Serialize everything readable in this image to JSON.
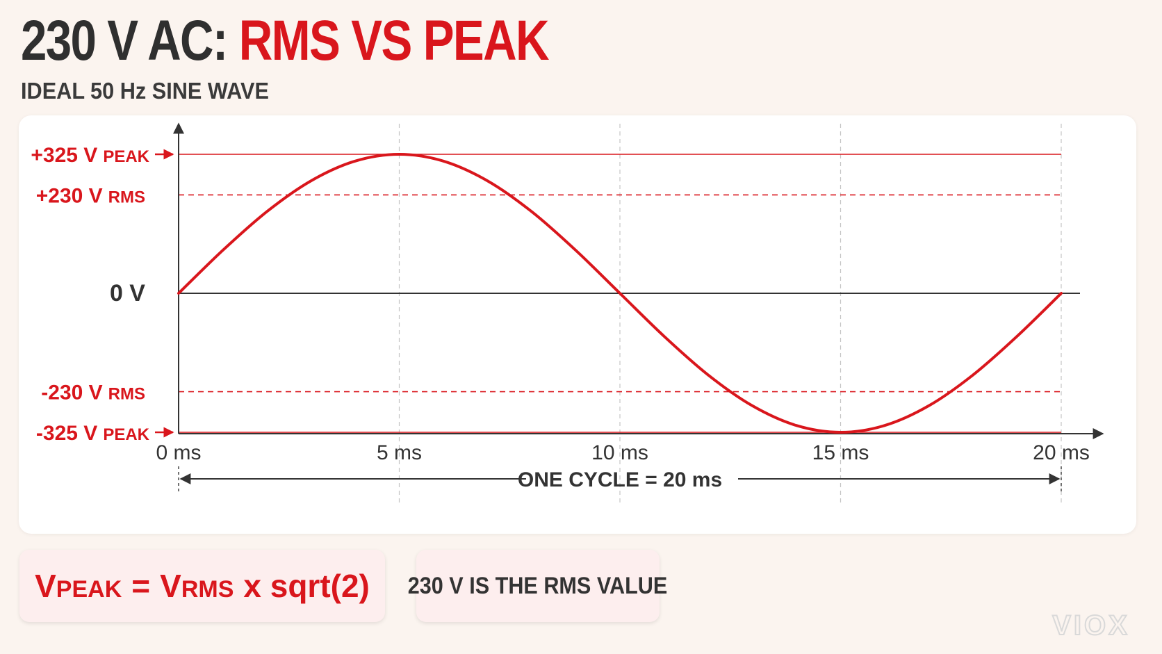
{
  "header": {
    "title_prefix": "230 V AC: ",
    "title_highlight": "RMS VS PEAK",
    "subtitle": "IDEAL 50 Hz SINE WAVE"
  },
  "colors": {
    "accent": "#d9161c",
    "dark": "#2f2f2f",
    "background": "#fbf4ef",
    "card": "#ffffff",
    "box": "#fdeeee"
  },
  "chart_data": {
    "type": "line",
    "title": "",
    "xlabel": "",
    "ylabel": "",
    "xlim": [
      0,
      20
    ],
    "ylim": [
      -325,
      325
    ],
    "series": [
      {
        "x": [
          0,
          1,
          2,
          3,
          4,
          5,
          6,
          7,
          8,
          9,
          10,
          11,
          12,
          13,
          14,
          15,
          16,
          17,
          18,
          19,
          20
        ],
        "y": [
          0,
          100.4,
          191.0,
          262.9,
          309.1,
          325,
          309.1,
          262.9,
          191.0,
          100.4,
          0,
          -100.4,
          -191.0,
          -262.9,
          -309.1,
          -325,
          -309.1,
          -262.9,
          -191.0,
          -100.4,
          0
        ]
      }
    ],
    "x_ticks": [
      {
        "value": 0,
        "label": "0 ms"
      },
      {
        "value": 5,
        "label": "5 ms"
      },
      {
        "value": 10,
        "label": "10 ms"
      },
      {
        "value": 15,
        "label": "15 ms"
      },
      {
        "value": 20,
        "label": "20 ms"
      }
    ],
    "reference_lines": [
      {
        "value": 325,
        "style": "solid",
        "color": "#d9161c",
        "label_main": "+325 V",
        "label_small": "PEAK",
        "arrow": true
      },
      {
        "value": 230,
        "style": "dashed",
        "color": "#d9161c",
        "label_main": "+230 V",
        "label_small": "RMS",
        "arrow": false
      },
      {
        "value": 0,
        "style": "solid",
        "color": "#333333",
        "label_main": "0 V",
        "label_small": "",
        "arrow": false
      },
      {
        "value": -230,
        "style": "dashed",
        "color": "#d9161c",
        "label_main": "-230 V",
        "label_small": "RMS",
        "arrow": false
      },
      {
        "value": -325,
        "style": "solid",
        "color": "#d9161c",
        "label_main": "-325 V",
        "label_small": "PEAK",
        "arrow": true
      }
    ],
    "annotation": {
      "x_start": 0,
      "x_end": 20,
      "label": "ONE CYCLE = 20 ms"
    },
    "grid": {
      "vertical_dashed": true
    }
  },
  "formula": {
    "v1": "V",
    "v1_sub": "PEAK",
    "equals": "=",
    "v2": "V",
    "v2_sub": "RMS",
    "rest": "x sqrt(2)"
  },
  "note": "230 V IS THE RMS VALUE",
  "logo": {
    "text": "VIOX"
  }
}
